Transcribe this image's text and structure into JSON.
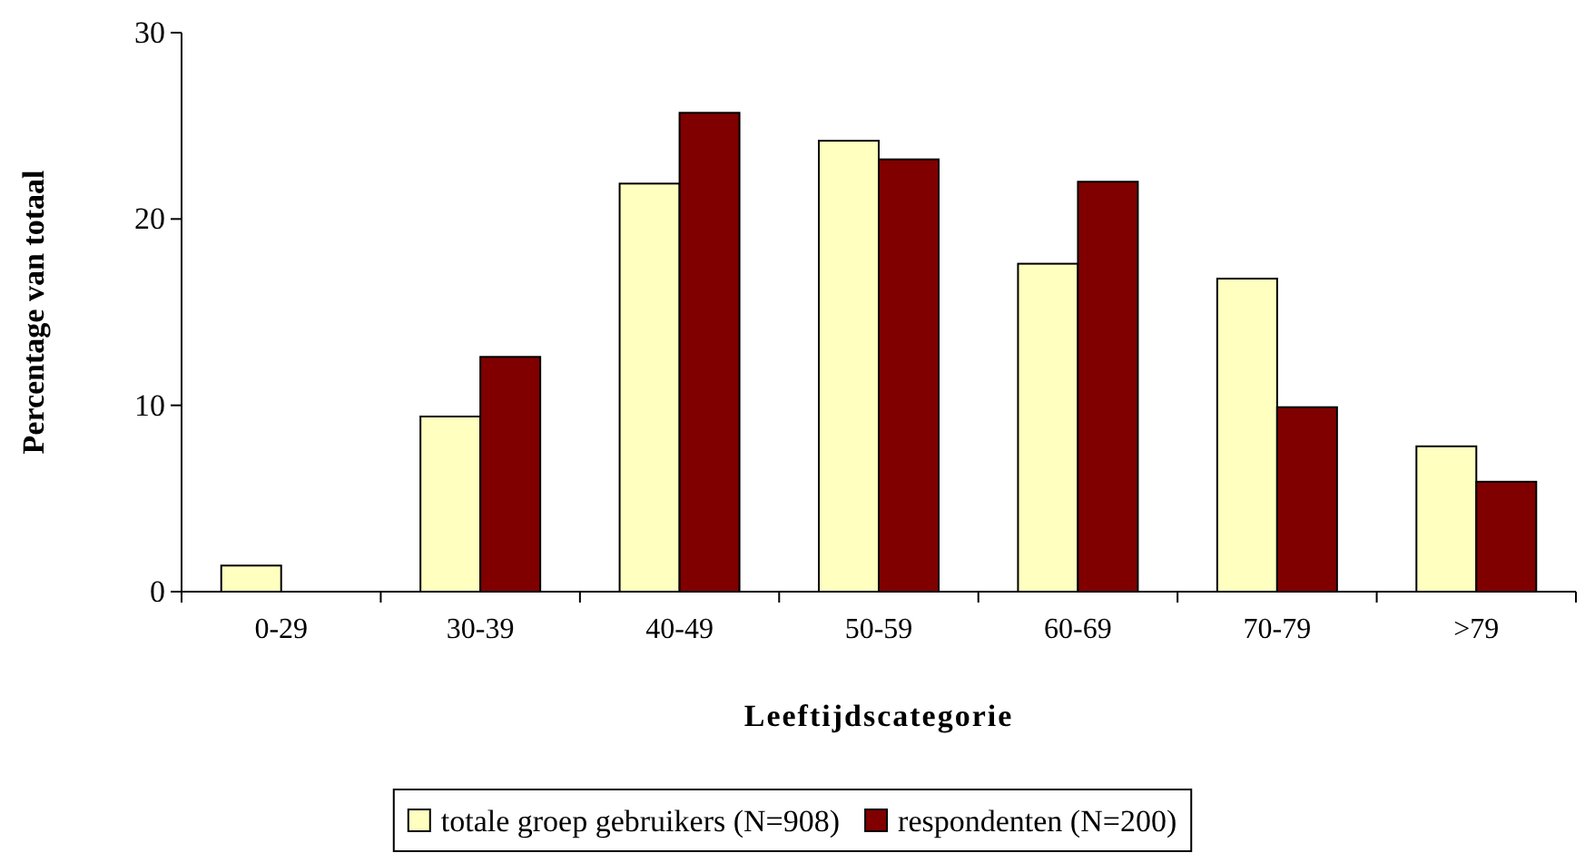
{
  "chart_data": {
    "type": "bar",
    "xlabel": "Leeftijdscategorie",
    "ylabel": "Percentage van totaal",
    "categories": [
      "0-29",
      "30-39",
      "40-49",
      "50-59",
      "60-69",
      "70-79",
      ">79"
    ],
    "series": [
      {
        "name": "totale groep gebruikers (N=908)",
        "color": "#ffffc0",
        "values": [
          1.4,
          9.4,
          21.9,
          24.2,
          17.6,
          16.8,
          7.8
        ]
      },
      {
        "name": "respondenten (N=200)",
        "color": "#800000",
        "values": [
          0,
          12.6,
          25.7,
          23.2,
          22.0,
          9.9,
          5.9
        ]
      }
    ],
    "ylim": [
      0,
      30
    ],
    "yticks": [
      0,
      10,
      20,
      30
    ],
    "grid": false,
    "legend": "bottom"
  }
}
